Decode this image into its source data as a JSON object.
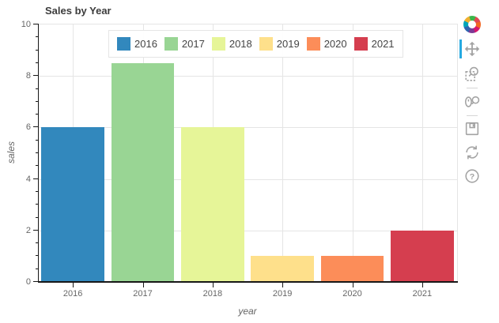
{
  "title": "Sales by Year",
  "chart_data": {
    "type": "bar",
    "title": "Sales by Year",
    "categories": [
      "2016",
      "2017",
      "2018",
      "2019",
      "2020",
      "2021"
    ],
    "values": [
      6,
      8.5,
      6,
      1,
      1,
      2
    ],
    "bar_colors": [
      "#3288bd",
      "#99d594",
      "#e6f598",
      "#fee08b",
      "#fc8d59",
      "#d53e4f"
    ],
    "xlabel": "year",
    "ylabel": "sales",
    "ylim": [
      0,
      10
    ],
    "yticks": [
      0,
      2,
      4,
      6,
      8,
      10
    ],
    "minor_tick_step": 0.5,
    "grid": true,
    "legend": {
      "position": "top-center",
      "entries": [
        "2016",
        "2017",
        "2018",
        "2019",
        "2020",
        "2021"
      ]
    }
  },
  "toolbar": {
    "logo": "bokeh-logo",
    "active_tool": "pan",
    "active_color": "#26aae1",
    "tools": [
      "pan",
      "box-zoom",
      "wheel-zoom",
      "save",
      "reset",
      "help"
    ]
  },
  "colors": {
    "grid": "#e5e5e5",
    "axis": "#171717",
    "tick_label": "#666666",
    "title_text": "#3c3c3c",
    "legend_text": "#444444",
    "tool_icon": "#a3a3a3"
  }
}
